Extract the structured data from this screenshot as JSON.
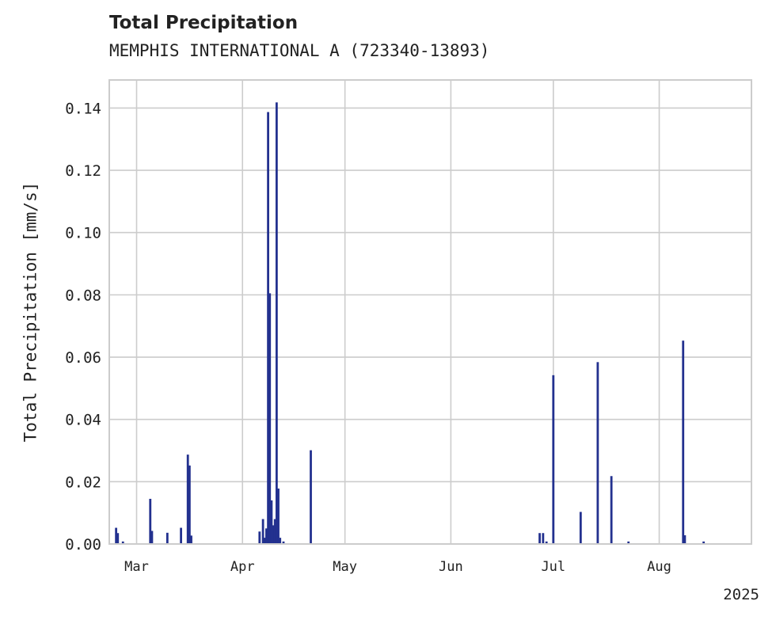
{
  "header": {
    "title": "Total Precipitation",
    "subtitle": "MEMPHIS INTERNATIONAL A (723340-13893)"
  },
  "chart_data": {
    "type": "bar",
    "title": "Total Precipitation",
    "subtitle": "MEMPHIS INTERNATIONAL A (723340-13893)",
    "xlabel": "",
    "ylabel": "Total Precipitation [mm/s]",
    "xlim": [
      "2025-02-21",
      "2025-08-28"
    ],
    "ylim": [
      0,
      0.149
    ],
    "yticks": [
      0.0,
      0.02,
      0.04,
      0.06,
      0.08,
      0.1,
      0.12,
      0.14
    ],
    "ytick_labels": [
      "0.00",
      "0.02",
      "0.04",
      "0.06",
      "0.08",
      "0.10",
      "0.12",
      "0.14"
    ],
    "xticks": [
      "2025-03-01",
      "2025-04-01",
      "2025-05-01",
      "2025-06-01",
      "2025-07-01",
      "2025-08-01"
    ],
    "xtick_labels": [
      "Mar",
      "Apr",
      "May",
      "Jun",
      "Jul",
      "Aug"
    ],
    "year_label": "2025",
    "grid": true,
    "bar_color": "#23318f",
    "grid_color": "#cccccc",
    "series": [
      {
        "x": [
          "2025-02-23",
          "2025-02-23T12:00",
          "2025-02-25",
          "2025-03-05",
          "2025-03-05T12:00",
          "2025-03-10",
          "2025-03-14",
          "2025-03-16",
          "2025-03-16T12:00",
          "2025-03-17",
          "2025-04-06",
          "2025-04-07",
          "2025-04-07T12:00",
          "2025-04-08",
          "2025-04-08T12:00",
          "2025-04-09",
          "2025-04-09T12:00",
          "2025-04-10",
          "2025-04-10T12:00",
          "2025-04-11",
          "2025-04-11T12:00",
          "2025-04-12",
          "2025-04-13",
          "2025-04-21",
          "2025-06-27",
          "2025-06-28",
          "2025-06-29",
          "2025-07-01",
          "2025-07-09",
          "2025-07-14",
          "2025-07-18",
          "2025-07-23",
          "2025-08-08",
          "2025-08-08T12:00",
          "2025-08-14"
        ],
        "values": [
          0.0052,
          0.0035,
          0.0008,
          0.0145,
          0.0042,
          0.0036,
          0.0052,
          0.0287,
          0.0252,
          0.0027,
          0.004,
          0.008,
          0.002,
          0.005,
          0.1387,
          0.0805,
          0.014,
          0.006,
          0.008,
          0.1418,
          0.0178,
          0.002,
          0.0008,
          0.0301,
          0.0035,
          0.0035,
          0.0008,
          0.0542,
          0.0103,
          0.0584,
          0.0218,
          0.0008,
          0.0653,
          0.0028,
          0.0008
        ]
      }
    ]
  }
}
